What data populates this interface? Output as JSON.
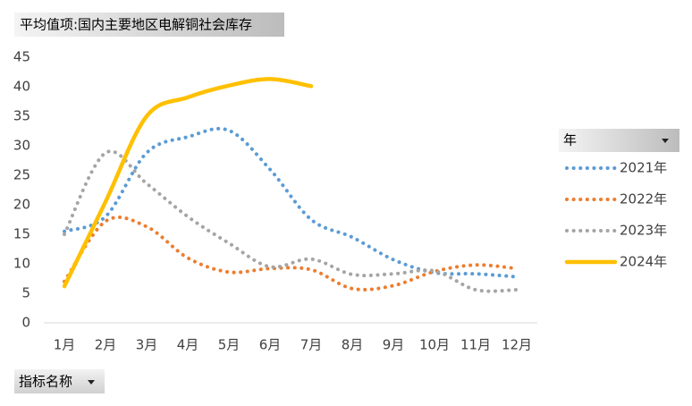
{
  "chart_data": {
    "type": "line",
    "title": "平均值项:国内主要地区电解铜社会库存",
    "legend_title": "年",
    "field_button": "指标名称",
    "categories": [
      "1月",
      "2月",
      "3月",
      "4月",
      "5月",
      "6月",
      "7月",
      "8月",
      "9月",
      "10月",
      "11月",
      "12月"
    ],
    "series": [
      {
        "name": "2021年",
        "color": "#5b9bd5",
        "dotted": true,
        "values": [
          15.5,
          18,
          28.8,
          31.5,
          32.6,
          26,
          17.5,
          14.5,
          10.7,
          8.5,
          8.3,
          7.8
        ]
      },
      {
        "name": "2022年",
        "color": "#ed7d31",
        "dotted": true,
        "values": [
          7,
          17.2,
          16.3,
          11,
          8.6,
          9.2,
          9,
          5.8,
          6.3,
          8.7,
          9.8,
          9.2
        ]
      },
      {
        "name": "2023年",
        "color": "#a5a5a5",
        "dotted": true,
        "values": [
          15,
          28.8,
          23.6,
          18,
          13.5,
          9.5,
          10.8,
          8.2,
          8.3,
          8.8,
          5.6,
          5.6
        ]
      },
      {
        "name": "2024年",
        "color": "#ffc000",
        "dotted": false,
        "values": [
          6.2,
          20.5,
          35,
          38.2,
          40.2,
          41.3,
          40.1,
          null,
          null,
          null,
          null,
          null
        ]
      }
    ],
    "ylim": [
      0,
      45
    ],
    "yticks": [
      0,
      5,
      10,
      15,
      20,
      25,
      30,
      35,
      40,
      45
    ],
    "grid": false,
    "smooth": true,
    "legend": "right"
  }
}
